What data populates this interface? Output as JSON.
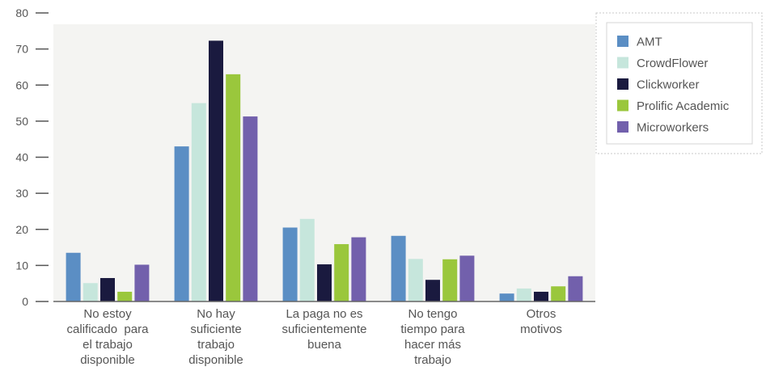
{
  "chart_data": {
    "type": "bar",
    "title": "",
    "xlabel": "",
    "ylabel": "",
    "ylim": [
      0,
      80
    ],
    "yticks": [
      0,
      10,
      20,
      30,
      40,
      50,
      60,
      70,
      80
    ],
    "grid": false,
    "legend_position": "top-right",
    "categories": [
      [
        "No estoy",
        "calificado  para",
        "el trabajo",
        "disponible"
      ],
      [
        "No hay",
        "suficiente",
        "trabajo",
        "disponible"
      ],
      [
        "La paga no es",
        "suficientemente",
        "buena"
      ],
      [
        "No tengo",
        "tiempo para",
        "hacer más",
        "trabajo"
      ],
      [
        "Otros",
        "motivos"
      ]
    ],
    "series": [
      {
        "name": "AMT",
        "color": "#5b8ec4",
        "values": [
          13.5,
          43,
          20.5,
          18.2,
          2.2
        ]
      },
      {
        "name": "CrowdFlower",
        "color": "#c6e6dc",
        "values": [
          5.1,
          55,
          22.9,
          11.8,
          3.6
        ]
      },
      {
        "name": "Clickworker",
        "color": "#1a1a3f",
        "values": [
          6.5,
          72.3,
          10.3,
          6,
          2.7
        ]
      },
      {
        "name": "Prolific Academic",
        "color": "#9ac73c",
        "values": [
          2.7,
          63,
          15.9,
          11.7,
          4.2
        ]
      },
      {
        "name": "Microworkers",
        "color": "#7260ac",
        "values": [
          10.2,
          51.3,
          17.8,
          12.7,
          7
        ]
      }
    ]
  }
}
